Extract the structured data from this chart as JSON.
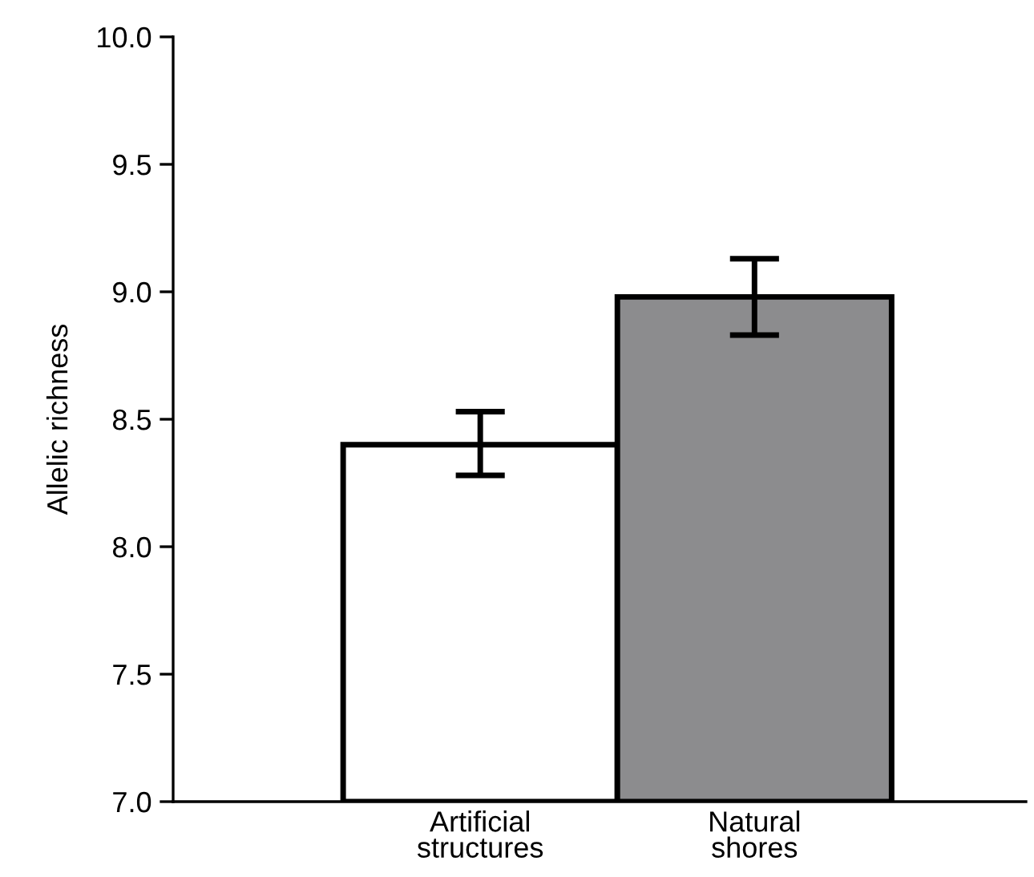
{
  "chart_data": {
    "type": "bar",
    "ylabel": "Allelic richness",
    "categories": [
      "Artificial\nstructures",
      "Natural\nshores"
    ],
    "values": [
      8.4,
      8.98
    ],
    "errors": [
      [
        8.28,
        8.53
      ],
      [
        8.83,
        9.13
      ]
    ],
    "colors": [
      "#ffffff",
      "#8c8c8e"
    ],
    "ylim": [
      7.0,
      10.0
    ],
    "yticks": [
      {
        "value": 7.0,
        "label": "7.0"
      },
      {
        "value": 7.5,
        "label": "7.5"
      },
      {
        "value": 8.0,
        "label": "8.0"
      },
      {
        "value": 8.5,
        "label": "8.5"
      },
      {
        "value": 9.0,
        "label": "9.0"
      },
      {
        "value": 9.5,
        "label": "9.5"
      },
      {
        "value": 10.0,
        "label": "10.0"
      }
    ],
    "grid": false,
    "legend": false
  }
}
